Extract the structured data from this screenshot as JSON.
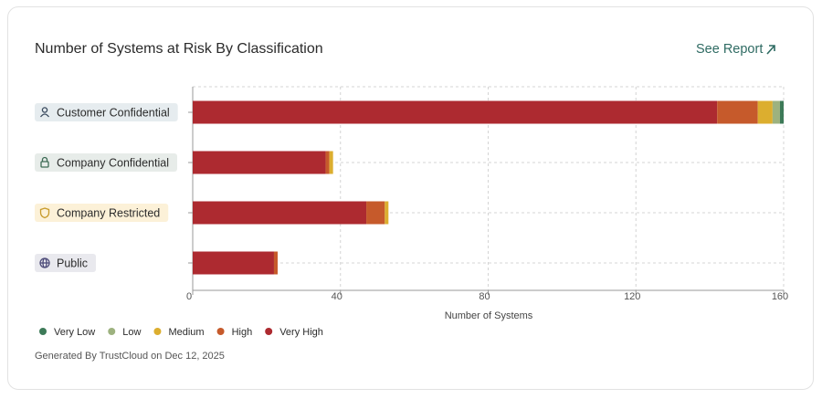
{
  "chart_data": {
    "type": "bar",
    "orientation": "horizontal",
    "stacked": true,
    "title": "Number of Systems at Risk By Classification",
    "link_text": "See Report",
    "categories": [
      "Customer Confidential",
      "Company Confidential",
      "Company Restricted",
      "Public"
    ],
    "series": [
      {
        "name": "Very Low",
        "color": "#3d7a58",
        "values": [
          1,
          0,
          0,
          0
        ]
      },
      {
        "name": "Low",
        "color": "#9db27f",
        "values": [
          2,
          0,
          0,
          0
        ]
      },
      {
        "name": "Medium",
        "color": "#dcae2f",
        "values": [
          4,
          1,
          1,
          0
        ]
      },
      {
        "name": "High",
        "color": "#c65a2b",
        "values": [
          11,
          1,
          5,
          1
        ]
      },
      {
        "name": "Very High",
        "color": "#ad2a30",
        "values": [
          142,
          36,
          47,
          22
        ]
      }
    ],
    "xlim": [
      0,
      160
    ],
    "xticks": [
      0,
      40,
      80,
      120,
      160
    ],
    "x_label": "Number of Systems",
    "grid": true,
    "legend": "bottom-left",
    "footer": "Generated By TrustCloud on Dec 12, 2025"
  }
}
